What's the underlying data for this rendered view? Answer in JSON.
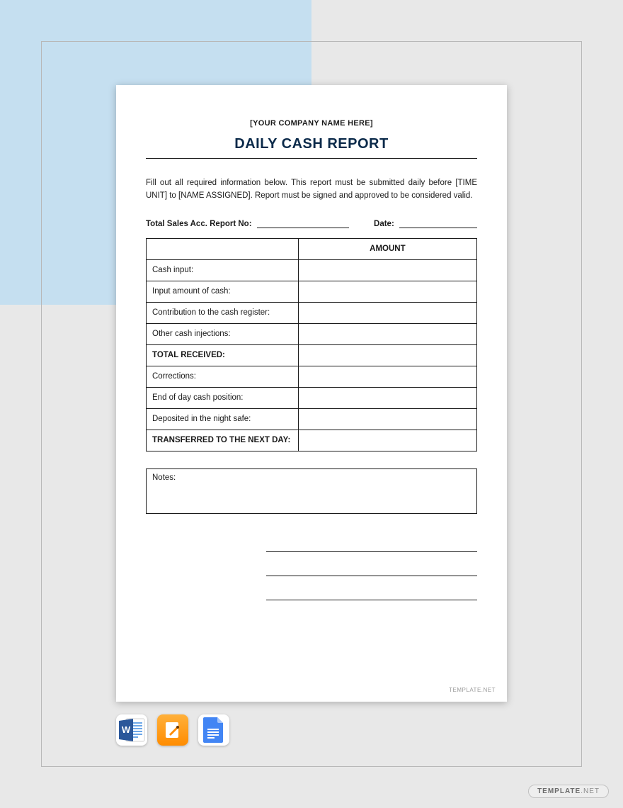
{
  "layout": {
    "page_bg": "#e8e8e8",
    "blue_band": "#c5dff0",
    "doc_bg": "#ffffff",
    "border_color": "#1a1a1a"
  },
  "doc": {
    "company_placeholder": "[YOUR COMPANY NAME HERE]",
    "title": "DAILY CASH REPORT",
    "instructions": "Fill out all required information below. This report must be submitted daily before [TIME UNIT] to [NAME ASSIGNED]. Report must be signed and approved to be considered valid.",
    "meta": {
      "report_no_label": "Total Sales Acc. Report No:",
      "date_label": "Date:"
    },
    "table": {
      "header_blank": "",
      "header_amount": "AMOUNT",
      "rows": [
        {
          "label": "Cash input:",
          "bold": false
        },
        {
          "label": "Input amount of cash:",
          "bold": false
        },
        {
          "label": "Contribution to the cash register:",
          "bold": false
        },
        {
          "label": "Other cash injections:",
          "bold": false
        },
        {
          "label": "TOTAL RECEIVED:",
          "bold": true
        },
        {
          "label": "Corrections:",
          "bold": false
        },
        {
          "label": "End of day cash position:",
          "bold": false
        },
        {
          "label": "Deposited in the night safe:",
          "bold": false
        },
        {
          "label": "TRANSFERRED TO THE NEXT DAY:",
          "bold": true
        }
      ]
    },
    "notes_label": "Notes:",
    "watermark": "TEMPLATE.NET"
  },
  "icons": {
    "word": {
      "bg": "#2b579a",
      "accent": "#1e3f73"
    },
    "pages": {
      "bg": "#ff9500",
      "accent": "#ffffff"
    },
    "gdocs": {
      "bg": "#4285f4",
      "accent": "#ffffff"
    }
  },
  "footer_brand": {
    "text1": "TEMPLATE",
    "text2": ".NET"
  }
}
